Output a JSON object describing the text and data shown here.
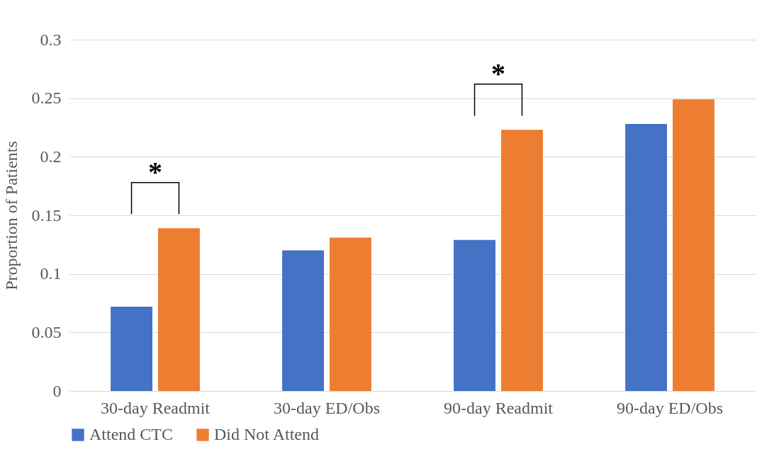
{
  "chart_data": {
    "type": "bar",
    "ylabel": "Proportion of Patients",
    "categories": [
      "30-day Readmit",
      "30-day ED/Obs",
      "90-day Readmit",
      "90-day ED/Obs"
    ],
    "series": [
      {
        "name": "Attend CTC",
        "color": "#4472c4",
        "values": [
          0.072,
          0.12,
          0.129,
          0.228
        ]
      },
      {
        "name": "Did Not Attend",
        "color": "#ed7d31",
        "values": [
          0.139,
          0.131,
          0.223,
          0.249
        ]
      }
    ],
    "ylim": [
      0,
      0.3
    ],
    "yticks": [
      0,
      0.05,
      0.1,
      0.15,
      0.2,
      0.25,
      0.3
    ],
    "grid": "y",
    "legend": "bottom",
    "annotations": [
      "*",
      "*"
    ]
  }
}
